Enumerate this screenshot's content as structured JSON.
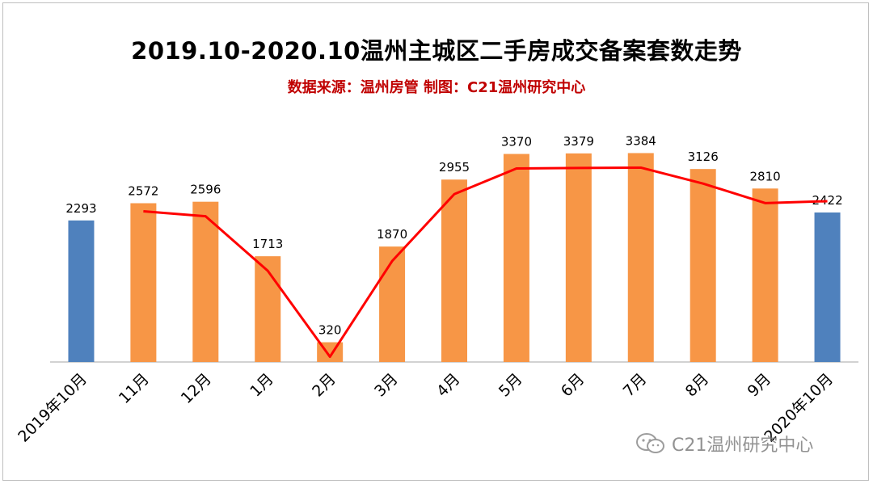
{
  "chart_data": {
    "type": "bar",
    "title": "2019.10-2020.10温州主城区二手房成交备案套数走势",
    "subtitle": "数据来源：温州房管  制图：C21温州研究中心",
    "categories": [
      "2019年10月",
      "11月",
      "12月",
      "1月",
      "2月",
      "3月",
      "4月",
      "5月",
      "6月",
      "7月",
      "8月",
      "9月",
      "2020年10月"
    ],
    "values": [
      2293,
      2572,
      2596,
      1713,
      320,
      1870,
      2955,
      3370,
      3379,
      3384,
      3126,
      2810,
      2422
    ],
    "bar_colors": [
      "#4f81bd",
      "#f79646",
      "#f79646",
      "#f79646",
      "#f79646",
      "#f79646",
      "#f79646",
      "#f79646",
      "#f79646",
      "#f79646",
      "#f79646",
      "#f79646",
      "#4f81bd"
    ],
    "trend_line": {
      "color": "#ff0000",
      "values": [
        2293,
        2572,
        2596,
        1713,
        320,
        1870,
        2955,
        3370,
        3379,
        3384,
        3126,
        2810,
        2422
      ]
    },
    "ylim": [
      0,
      3900
    ],
    "grid": false,
    "legend": "none"
  },
  "watermark": {
    "text": "C21温州研究中心",
    "icon": "wechat-icon"
  }
}
